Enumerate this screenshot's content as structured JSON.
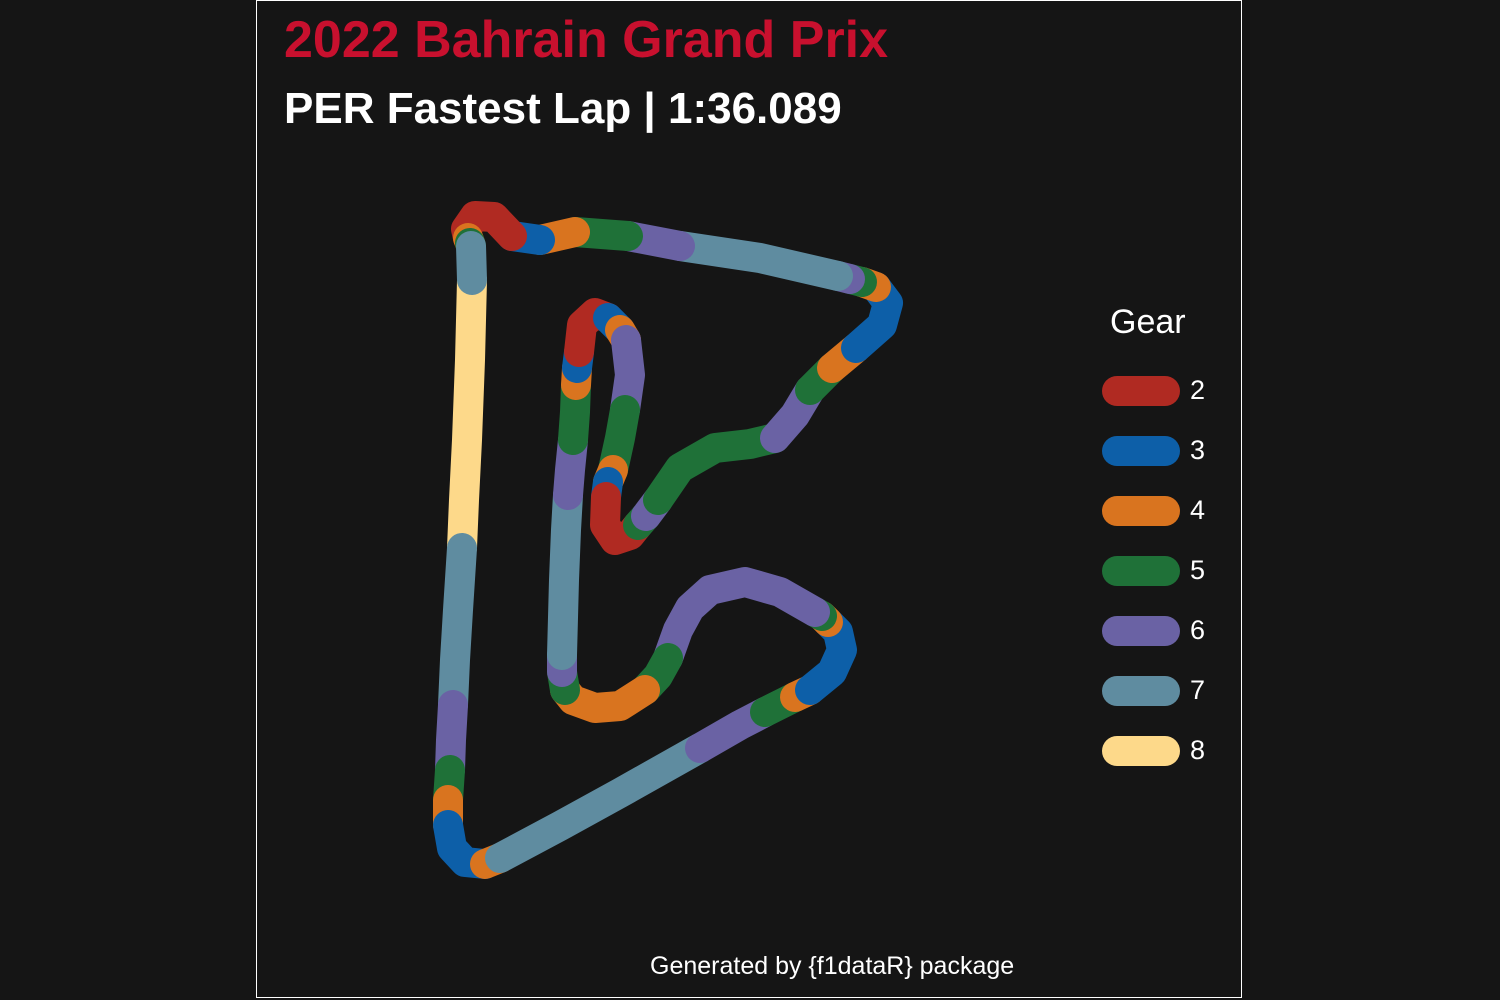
{
  "title": "2022 Bahrain Grand Prix",
  "subtitle": "PER Fastest Lap | 1:36.089",
  "caption": "Generated by {f1dataR} package",
  "chart_data": {
    "type": "track-map",
    "color_by": "Gear",
    "legend": {
      "title": "Gear",
      "placement": "right",
      "entries": [
        {
          "gear": "2",
          "color": "#b02a22"
        },
        {
          "gear": "3",
          "color": "#0d5fa8"
        },
        {
          "gear": "4",
          "color": "#d9741f"
        },
        {
          "gear": "5",
          "color": "#1f7138"
        },
        {
          "gear": "6",
          "color": "#6a62a4"
        },
        {
          "gear": "7",
          "color": "#5f8ca0"
        },
        {
          "gear": "8",
          "color": "#fdd98a"
        }
      ]
    },
    "grid": false,
    "axes": false,
    "segments": [
      {
        "gear": 8,
        "pts": [
          [
            472,
            280
          ],
          [
            470,
            360
          ],
          [
            467,
            440
          ],
          [
            464,
            500
          ],
          [
            462,
            548
          ]
        ]
      },
      {
        "gear": 7,
        "pts": [
          [
            462,
            548
          ],
          [
            458,
            610
          ],
          [
            455,
            660
          ],
          [
            453,
            705
          ]
        ]
      },
      {
        "gear": 6,
        "pts": [
          [
            453,
            705
          ],
          [
            451,
            740
          ],
          [
            450,
            770
          ]
        ]
      },
      {
        "gear": 5,
        "pts": [
          [
            450,
            770
          ],
          [
            448,
            800
          ]
        ]
      },
      {
        "gear": 4,
        "pts": [
          [
            448,
            800
          ],
          [
            448,
            825
          ]
        ]
      },
      {
        "gear": 3,
        "pts": [
          [
            448,
            825
          ],
          [
            452,
            848
          ],
          [
            465,
            862
          ],
          [
            485,
            864
          ]
        ]
      },
      {
        "gear": 4,
        "pts": [
          [
            485,
            864
          ],
          [
            500,
            858
          ]
        ]
      },
      {
        "gear": 7,
        "pts": [
          [
            500,
            858
          ],
          [
            560,
            826
          ],
          [
            620,
            793
          ],
          [
            700,
            748
          ]
        ]
      },
      {
        "gear": 6,
        "pts": [
          [
            700,
            748
          ],
          [
            740,
            725
          ],
          [
            765,
            712
          ]
        ]
      },
      {
        "gear": 5,
        "pts": [
          [
            765,
            712
          ],
          [
            795,
            697
          ]
        ]
      },
      {
        "gear": 4,
        "pts": [
          [
            795,
            697
          ],
          [
            810,
            690
          ]
        ]
      },
      {
        "gear": 3,
        "pts": [
          [
            810,
            690
          ],
          [
            832,
            672
          ],
          [
            842,
            650
          ],
          [
            838,
            632
          ],
          [
            828,
            622
          ]
        ]
      },
      {
        "gear": 4,
        "pts": [
          [
            828,
            622
          ],
          [
            822,
            616
          ]
        ]
      },
      {
        "gear": 5,
        "pts": [
          [
            822,
            616
          ],
          [
            815,
            612
          ]
        ]
      },
      {
        "gear": 6,
        "pts": [
          [
            815,
            612
          ],
          [
            780,
            592
          ],
          [
            745,
            582
          ],
          [
            710,
            590
          ],
          [
            690,
            608
          ],
          [
            678,
            630
          ],
          [
            668,
            658
          ]
        ]
      },
      {
        "gear": 5,
        "pts": [
          [
            668,
            658
          ],
          [
            658,
            676
          ],
          [
            645,
            690
          ]
        ]
      },
      {
        "gear": 4,
        "pts": [
          [
            645,
            690
          ],
          [
            620,
            706
          ],
          [
            595,
            708
          ],
          [
            573,
            700
          ],
          [
            565,
            690
          ]
        ]
      },
      {
        "gear": 5,
        "pts": [
          [
            565,
            690
          ],
          [
            562,
            672
          ]
        ]
      },
      {
        "gear": 6,
        "pts": [
          [
            562,
            672
          ],
          [
            562,
            655
          ]
        ]
      },
      {
        "gear": 7,
        "pts": [
          [
            562,
            655
          ],
          [
            564,
            580
          ],
          [
            566,
            530
          ],
          [
            568,
            495
          ]
        ]
      },
      {
        "gear": 6,
        "pts": [
          [
            568,
            495
          ],
          [
            570,
            470
          ],
          [
            573,
            440
          ]
        ]
      },
      {
        "gear": 5,
        "pts": [
          [
            573,
            440
          ],
          [
            575,
            412
          ],
          [
            576,
            385
          ]
        ]
      },
      {
        "gear": 4,
        "pts": [
          [
            576,
            385
          ],
          [
            577,
            368
          ]
        ]
      },
      {
        "gear": 3,
        "pts": [
          [
            577,
            368
          ],
          [
            579,
            352
          ]
        ]
      },
      {
        "gear": 2,
        "pts": [
          [
            579,
            352
          ],
          [
            582,
            325
          ],
          [
            595,
            313
          ],
          [
            608,
            318
          ]
        ]
      },
      {
        "gear": 3,
        "pts": [
          [
            608,
            318
          ],
          [
            620,
            330
          ]
        ]
      },
      {
        "gear": 4,
        "pts": [
          [
            620,
            330
          ],
          [
            626,
            340
          ]
        ]
      },
      {
        "gear": 6,
        "pts": [
          [
            626,
            340
          ],
          [
            630,
            375
          ],
          [
            625,
            410
          ]
        ]
      },
      {
        "gear": 5,
        "pts": [
          [
            625,
            410
          ],
          [
            620,
            438
          ],
          [
            613,
            470
          ]
        ]
      },
      {
        "gear": 4,
        "pts": [
          [
            613,
            470
          ],
          [
            608,
            482
          ]
        ]
      },
      {
        "gear": 3,
        "pts": [
          [
            608,
            482
          ],
          [
            606,
            497
          ]
        ]
      },
      {
        "gear": 2,
        "pts": [
          [
            606,
            497
          ],
          [
            605,
            525
          ],
          [
            615,
            540
          ],
          [
            630,
            535
          ],
          [
            638,
            525
          ]
        ]
      },
      {
        "gear": 5,
        "pts": [
          [
            638,
            525
          ],
          [
            646,
            516
          ]
        ]
      },
      {
        "gear": 6,
        "pts": [
          [
            646,
            516
          ],
          [
            658,
            500
          ]
        ]
      },
      {
        "gear": 5,
        "pts": [
          [
            658,
            500
          ],
          [
            680,
            468
          ],
          [
            715,
            448
          ],
          [
            750,
            444
          ],
          [
            775,
            438
          ]
        ]
      },
      {
        "gear": 6,
        "pts": [
          [
            775,
            438
          ],
          [
            795,
            415
          ],
          [
            810,
            390
          ]
        ]
      },
      {
        "gear": 5,
        "pts": [
          [
            810,
            390
          ],
          [
            832,
            368
          ]
        ]
      },
      {
        "gear": 4,
        "pts": [
          [
            832,
            368
          ],
          [
            856,
            348
          ]
        ]
      },
      {
        "gear": 3,
        "pts": [
          [
            856,
            348
          ],
          [
            882,
            325
          ],
          [
            888,
            303
          ],
          [
            876,
            287
          ]
        ]
      },
      {
        "gear": 4,
        "pts": [
          [
            876,
            287
          ],
          [
            862,
            282
          ]
        ]
      },
      {
        "gear": 5,
        "pts": [
          [
            862,
            282
          ],
          [
            850,
            279
          ]
        ]
      },
      {
        "gear": 6,
        "pts": [
          [
            850,
            279
          ],
          [
            838,
            276
          ]
        ]
      },
      {
        "gear": 7,
        "pts": [
          [
            838,
            276
          ],
          [
            760,
            258
          ],
          [
            680,
            246
          ]
        ]
      },
      {
        "gear": 6,
        "pts": [
          [
            680,
            246
          ],
          [
            628,
            236
          ]
        ]
      },
      {
        "gear": 5,
        "pts": [
          [
            628,
            236
          ],
          [
            575,
            232
          ]
        ]
      },
      {
        "gear": 4,
        "pts": [
          [
            575,
            232
          ],
          [
            540,
            240
          ]
        ]
      },
      {
        "gear": 3,
        "pts": [
          [
            540,
            240
          ],
          [
            512,
            236
          ]
        ]
      },
      {
        "gear": 2,
        "pts": [
          [
            512,
            236
          ],
          [
            494,
            217
          ],
          [
            475,
            216
          ],
          [
            466,
            229
          ],
          [
            468,
            238
          ]
        ]
      },
      {
        "gear": 4,
        "pts": [
          [
            468,
            238
          ],
          [
            470,
            243
          ]
        ]
      },
      {
        "gear": 5,
        "pts": [
          [
            470,
            243
          ],
          [
            471,
            246
          ]
        ]
      },
      {
        "gear": 7,
        "pts": [
          [
            471,
            246
          ],
          [
            472,
            280
          ]
        ]
      }
    ]
  }
}
